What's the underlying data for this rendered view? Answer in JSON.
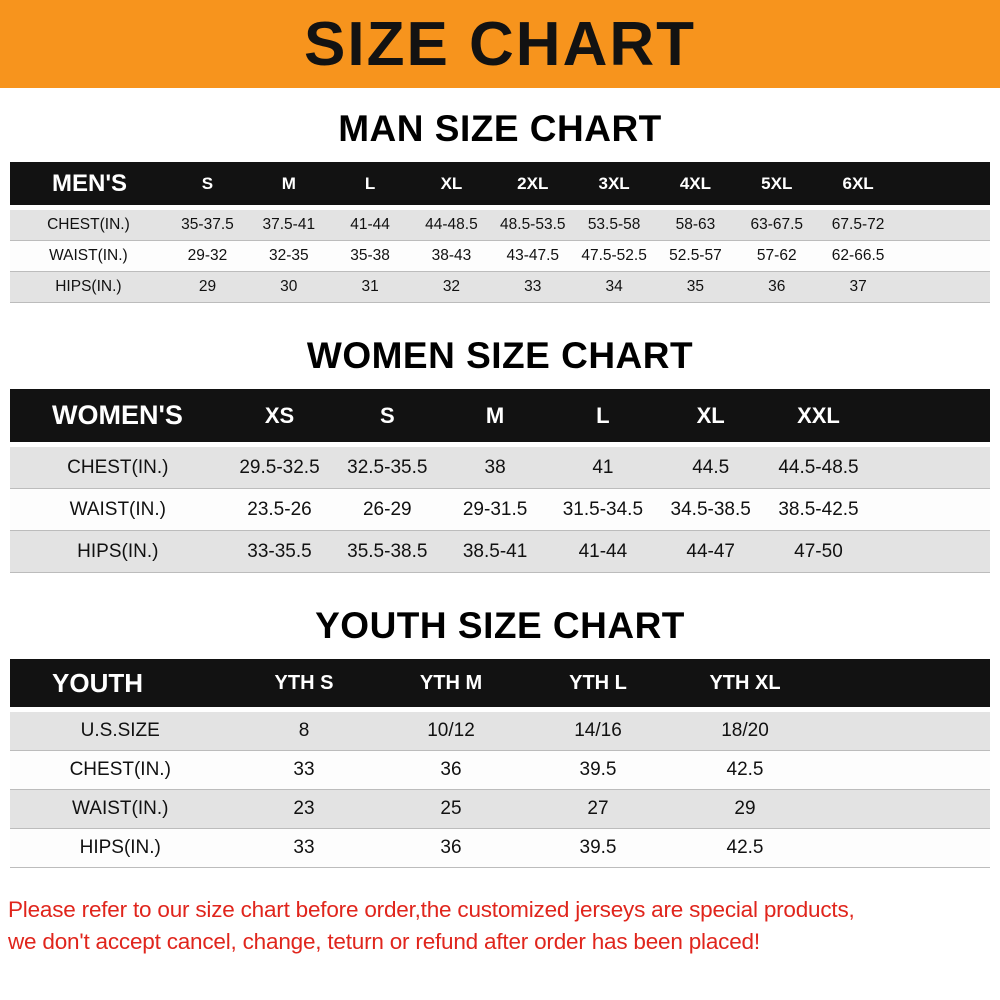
{
  "banner": {
    "title": "SIZE CHART",
    "bg_color": "#f7941d"
  },
  "chart_data": [
    {
      "type": "table",
      "title": "MAN SIZE CHART",
      "columns": [
        "MEN'S",
        "S",
        "M",
        "L",
        "XL",
        "2XL",
        "3XL",
        "4XL",
        "5XL",
        "6XL"
      ],
      "rows": [
        [
          "CHEST(IN.)",
          "35-37.5",
          "37.5-41",
          "41-44",
          "44-48.5",
          "48.5-53.5",
          "53.5-58",
          "58-63",
          "63-67.5",
          "67.5-72"
        ],
        [
          "WAIST(IN.)",
          "29-32",
          "32-35",
          "35-38",
          "38-43",
          "43-47.5",
          "47.5-52.5",
          "52.5-57",
          "57-62",
          "62-66.5"
        ],
        [
          "HIPS(IN.)",
          "29",
          "30",
          "31",
          "32",
          "33",
          "34",
          "35",
          "36",
          "37"
        ]
      ]
    },
    {
      "type": "table",
      "title": "WOMEN SIZE CHART",
      "columns": [
        "WOMEN'S",
        "XS",
        "S",
        "M",
        "L",
        "XL",
        "XXL"
      ],
      "rows": [
        [
          "CHEST(IN.)",
          "29.5-32.5",
          "32.5-35.5",
          "38",
          "41",
          "44.5",
          "44.5-48.5"
        ],
        [
          "WAIST(IN.)",
          "23.5-26",
          "26-29",
          "29-31.5",
          "31.5-34.5",
          "34.5-38.5",
          "38.5-42.5"
        ],
        [
          "HIPS(IN.)",
          "33-35.5",
          "35.5-38.5",
          "38.5-41",
          "41-44",
          "44-47",
          "47-50"
        ]
      ]
    },
    {
      "type": "table",
      "title": "YOUTH SIZE CHART",
      "columns": [
        "YOUTH",
        "YTH S",
        "YTH M",
        "YTH L",
        "YTH XL"
      ],
      "rows": [
        [
          "U.S.SIZE",
          "8",
          "10/12",
          "14/16",
          "18/20"
        ],
        [
          "CHEST(IN.)",
          "33",
          "36",
          "39.5",
          "42.5"
        ],
        [
          "WAIST(IN.)",
          "23",
          "25",
          "27",
          "29"
        ],
        [
          "HIPS(IN.)",
          "33",
          "36",
          "39.5",
          "42.5"
        ]
      ]
    }
  ],
  "footer": {
    "line1": "Please refer to our size chart before order,the customized jerseys are special products,",
    "line2": "we don't accept cancel, change, teturn or refund after order has been placed!",
    "color": "#e0251c"
  }
}
